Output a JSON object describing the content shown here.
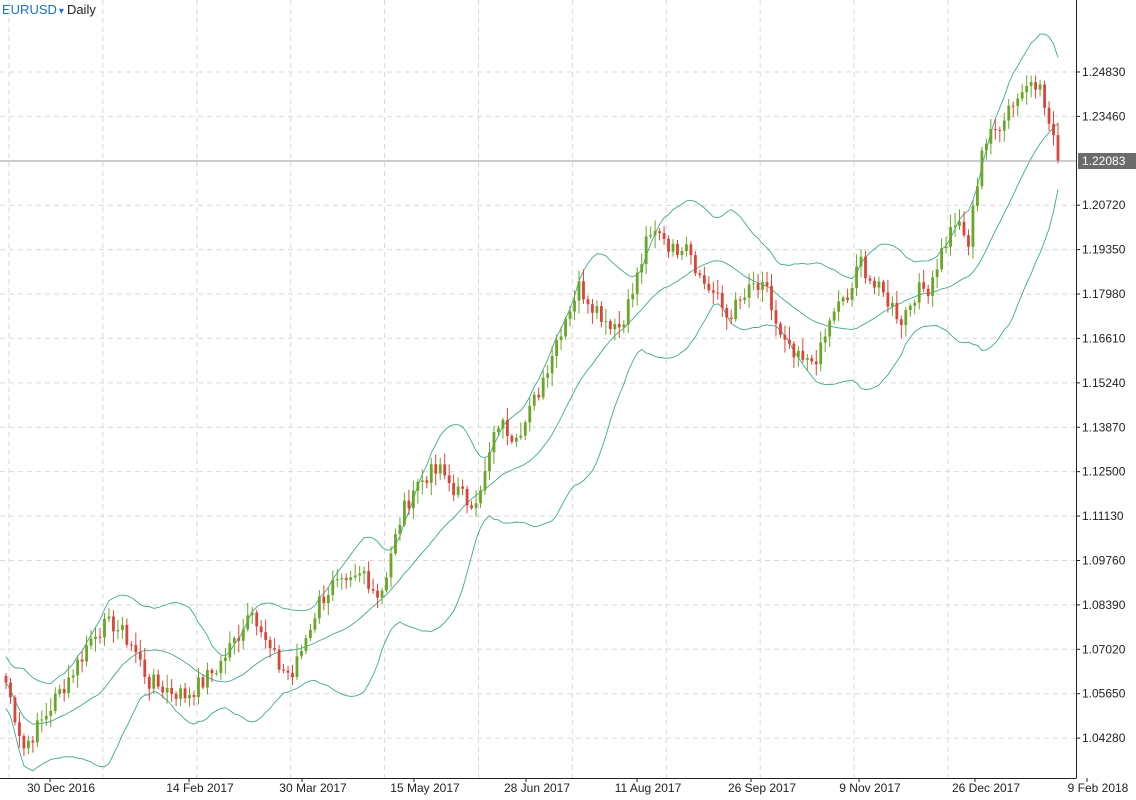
{
  "header": {
    "symbol": "EURUSD",
    "dropdown_glyph": "▾",
    "timeframe": "Daily"
  },
  "colors": {
    "bull": "#6aa62a",
    "bear": "#d9453a",
    "band": "#3fa88e",
    "mid": "#3fa88e",
    "grid": "#d9d9d9",
    "price_line": "#9a9a9a",
    "badge_bg": "#6b6b6b",
    "badge_text": "#ffffff"
  },
  "chart_data": {
    "type": "candlestick",
    "y_axis_ticks": [
      "1.04280",
      "1.05650",
      "1.07020",
      "1.08390",
      "1.09760",
      "1.11130",
      "1.12500",
      "1.13870",
      "1.15240",
      "1.16610",
      "1.17980",
      "1.19350",
      "1.20720",
      "1.22083",
      "1.23460",
      "1.24830"
    ],
    "x_axis_ticks": [
      "30 Dec 2016",
      "14 Feb 2017",
      "30 Mar 2017",
      "15 May 2017",
      "28 Jun 2017",
      "11 Aug 2017",
      "26 Sep 2017",
      "9 Nov 2017",
      "26 Dec 2017",
      "9 Feb 2018"
    ],
    "ylim": [
      1.0305,
      1.2705
    ],
    "current_price": "1.22083",
    "indicator": "Bollinger Bands",
    "close_path": [
      [
        0,
        1.06
      ],
      [
        4,
        1.04
      ],
      [
        8,
        1.048
      ],
      [
        12,
        1.057
      ],
      [
        16,
        1.066
      ],
      [
        20,
        1.076
      ],
      [
        24,
        1.078
      ],
      [
        28,
        1.072
      ],
      [
        32,
        1.06
      ],
      [
        36,
        1.058
      ],
      [
        40,
        1.056
      ],
      [
        44,
        1.06
      ],
      [
        48,
        1.066
      ],
      [
        52,
        1.075
      ],
      [
        55,
        1.084
      ],
      [
        58,
        1.072
      ],
      [
        61,
        1.065
      ],
      [
        64,
        1.062
      ],
      [
        67,
        1.074
      ],
      [
        70,
        1.085
      ],
      [
        73,
        1.09
      ],
      [
        76,
        1.089
      ],
      [
        80,
        1.094
      ],
      [
        83,
        1.087
      ],
      [
        85,
        1.093
      ],
      [
        88,
        1.11
      ],
      [
        91,
        1.12
      ],
      [
        94,
        1.124
      ],
      [
        97,
        1.125
      ],
      [
        100,
        1.12
      ],
      [
        103,
        1.116
      ],
      [
        106,
        1.118
      ],
      [
        108,
        1.13
      ],
      [
        110,
        1.14
      ],
      [
        113,
        1.137
      ],
      [
        116,
        1.14
      ],
      [
        119,
        1.15
      ],
      [
        122,
        1.162
      ],
      [
        125,
        1.173
      ],
      [
        128,
        1.182
      ],
      [
        131,
        1.177
      ],
      [
        134,
        1.172
      ],
      [
        137,
        1.17
      ],
      [
        140,
        1.18
      ],
      [
        143,
        1.195
      ],
      [
        146,
        1.2
      ],
      [
        149,
        1.193
      ],
      [
        152,
        1.197
      ],
      [
        155,
        1.185
      ],
      [
        158,
        1.18
      ],
      [
        161,
        1.173
      ],
      [
        164,
        1.177
      ],
      [
        167,
        1.182
      ],
      [
        170,
        1.18
      ],
      [
        173,
        1.166
      ],
      [
        176,
        1.16
      ],
      [
        179,
        1.158
      ],
      [
        182,
        1.162
      ],
      [
        185,
        1.175
      ],
      [
        188,
        1.178
      ],
      [
        191,
        1.19
      ],
      [
        194,
        1.182
      ],
      [
        197,
        1.178
      ],
      [
        200,
        1.172
      ],
      [
        203,
        1.18
      ],
      [
        206,
        1.182
      ],
      [
        209,
        1.193
      ],
      [
        212,
        1.202
      ],
      [
        215,
        1.195
      ],
      [
        218,
        1.225
      ],
      [
        221,
        1.23
      ],
      [
        224,
        1.238
      ],
      [
        227,
        1.242
      ],
      [
        229,
        1.248
      ],
      [
        231,
        1.243
      ],
      [
        233,
        1.232
      ],
      [
        235,
        1.2208
      ]
    ]
  }
}
